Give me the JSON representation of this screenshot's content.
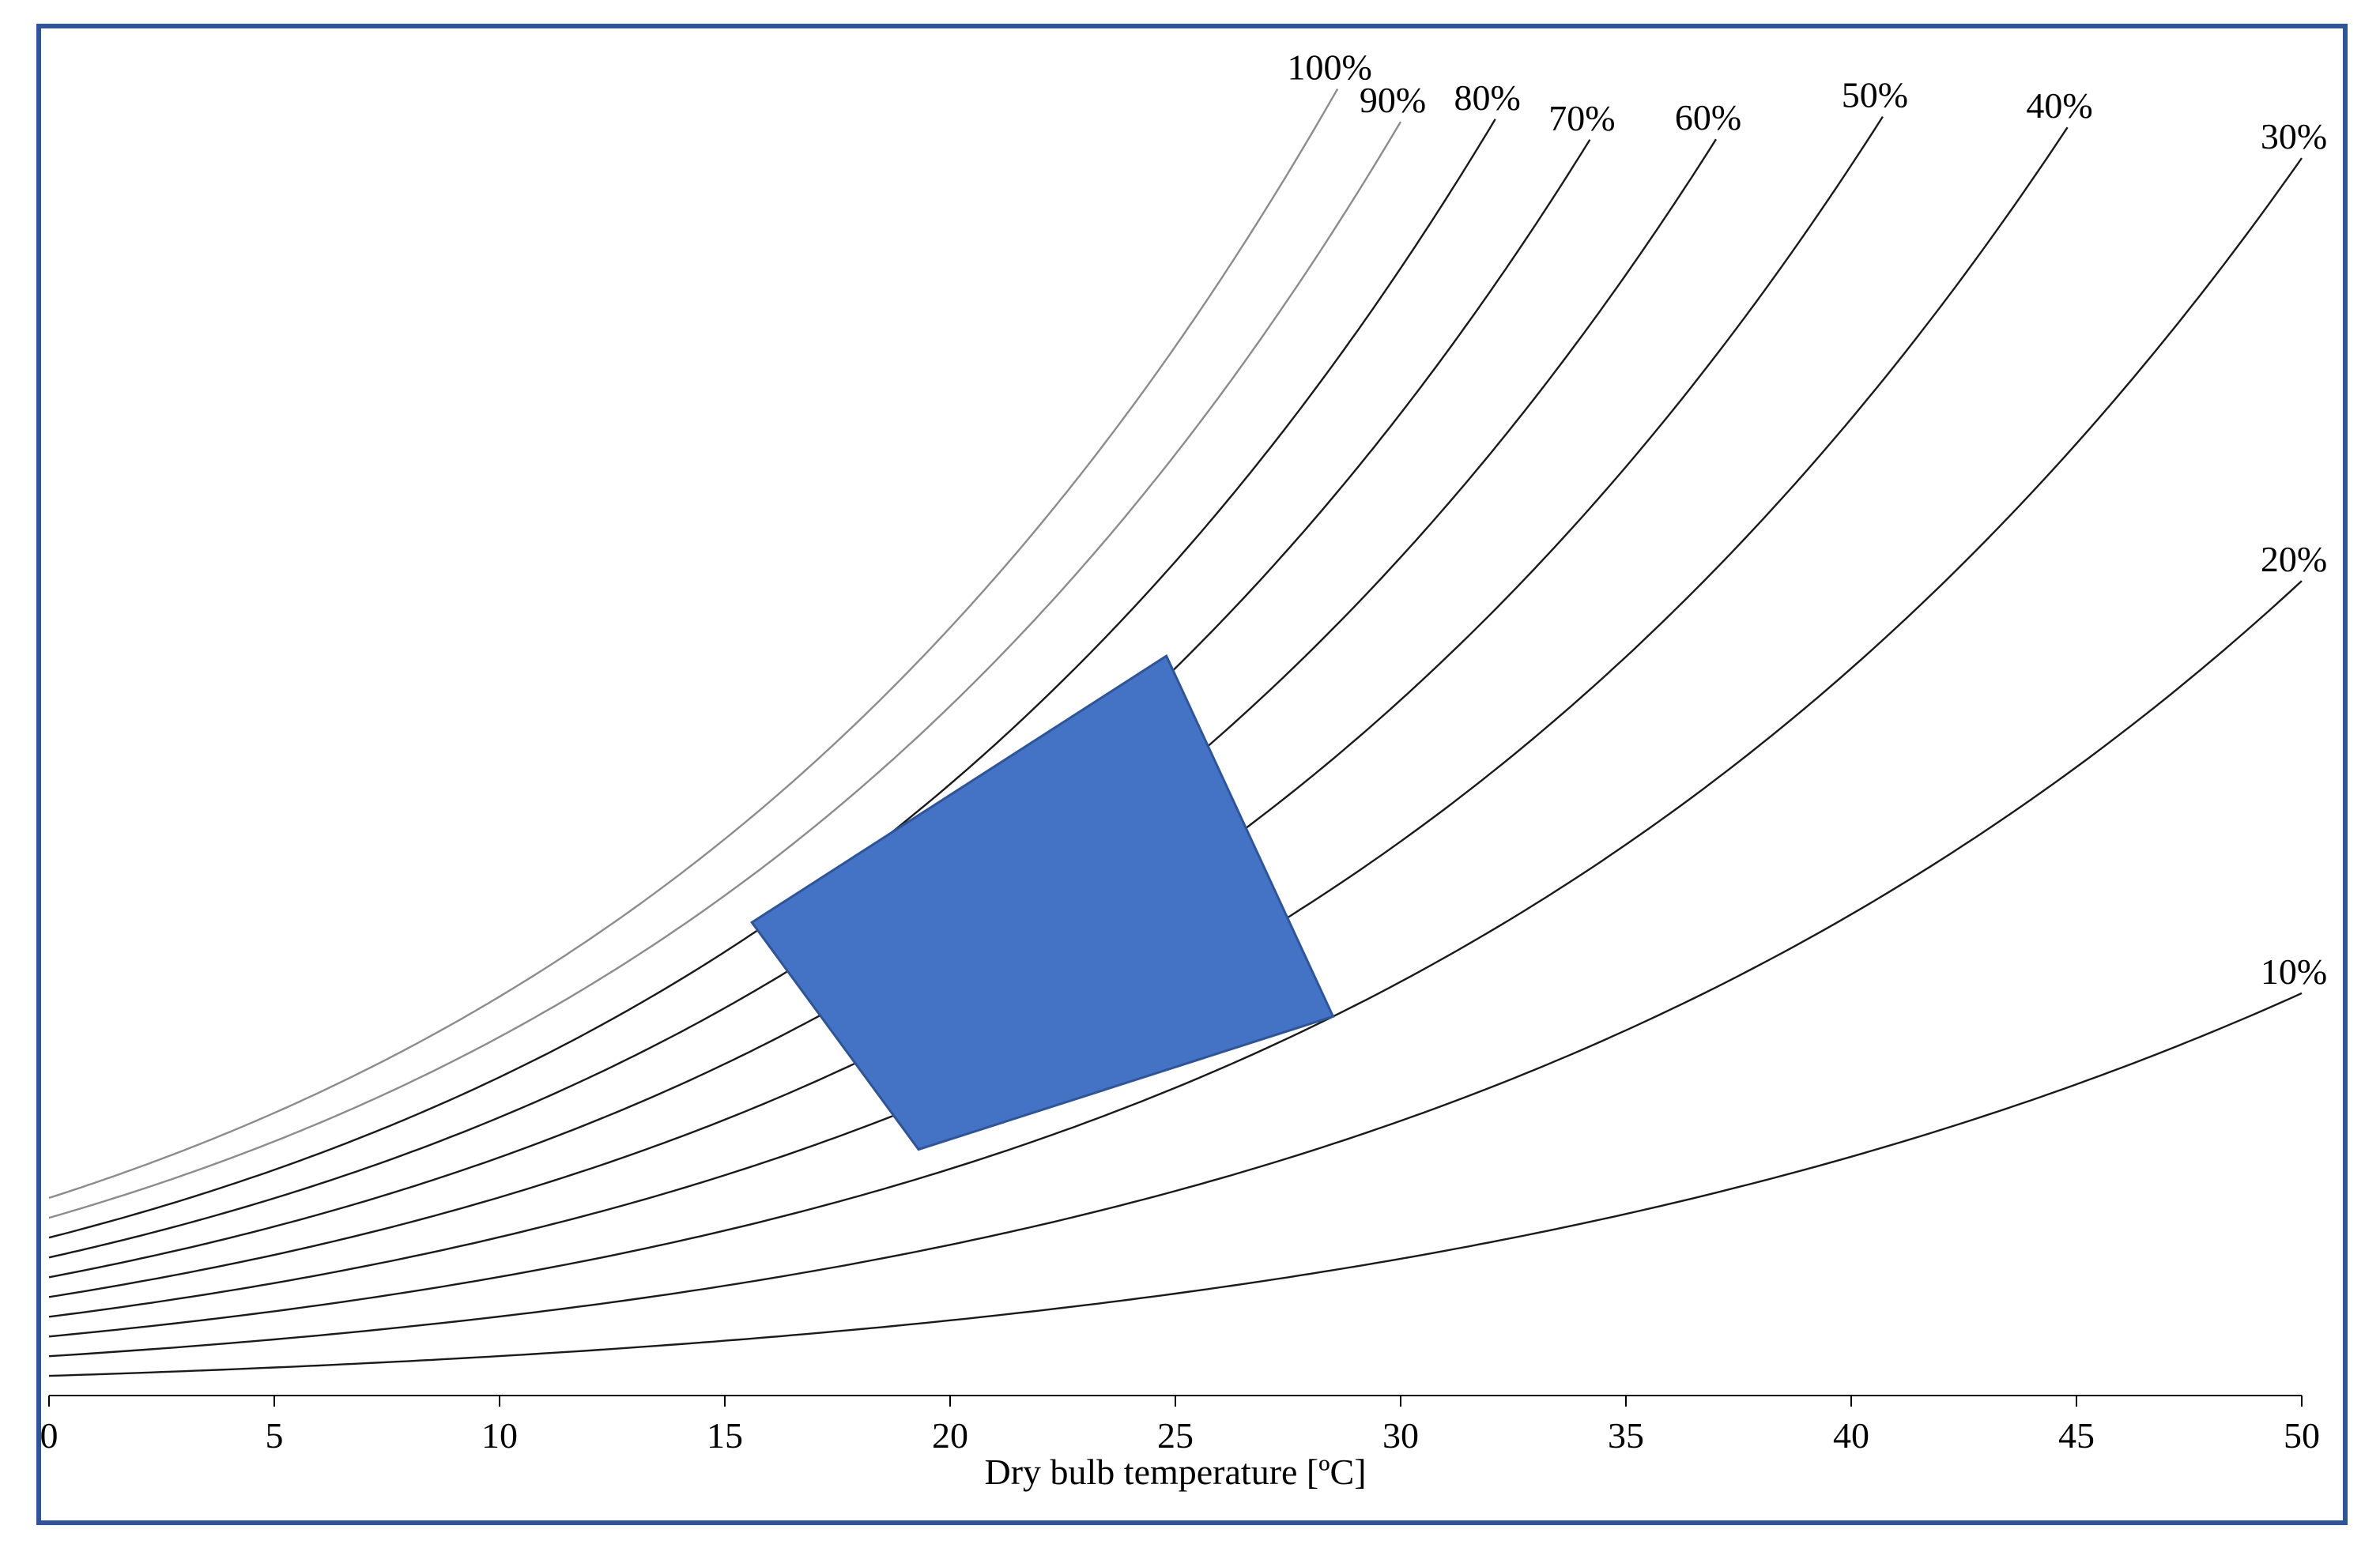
{
  "chart_data": {
    "type": "line",
    "title": "",
    "xlabel": "Dry bulb temperature  [ºC]",
    "ylabel": "",
    "xlim": [
      0,
      50
    ],
    "x_ticks": [
      0,
      5,
      10,
      15,
      20,
      25,
      30,
      35,
      40,
      45,
      50
    ],
    "x_tick_labels": [
      "0",
      "5",
      "10",
      "15",
      "20",
      "25",
      "30",
      "35",
      "40",
      "45",
      "50"
    ],
    "grid": false,
    "legend": "none",
    "ylim": [
      0,
      0.0255
    ],
    "y_axis_visible": false,
    "series": [
      {
        "name": "100%",
        "rh": 1.0,
        "x_end": 28.6,
        "color": "#8c8c8c"
      },
      {
        "name": "90%",
        "rh": 0.9,
        "x_end": 30.0,
        "color": "#8c8c8c"
      },
      {
        "name": "80%",
        "rh": 0.8,
        "x_end": 32.1,
        "color": "#1a1a1a"
      },
      {
        "name": "70%",
        "rh": 0.7,
        "x_end": 34.2,
        "color": "#1a1a1a"
      },
      {
        "name": "60%",
        "rh": 0.6,
        "x_end": 37.0,
        "color": "#1a1a1a"
      },
      {
        "name": "50%",
        "rh": 0.5,
        "x_end": 40.7,
        "color": "#1a1a1a"
      },
      {
        "name": "40%",
        "rh": 0.4,
        "x_end": 44.8,
        "color": "#1a1a1a"
      },
      {
        "name": "30%",
        "rh": 0.3,
        "x_end": 50.0,
        "color": "#1a1a1a"
      },
      {
        "name": "20%",
        "rh": 0.2,
        "x_end": 50.0,
        "color": "#1a1a1a"
      },
      {
        "name": "10%",
        "rh": 0.1,
        "x_end": 50.0,
        "color": "#1a1a1a"
      }
    ],
    "comfort_zone": {
      "color": "#4472c4",
      "stroke": "#2f5597",
      "vertices": [
        {
          "x": 15.6,
          "rh": 0.82
        },
        {
          "x": 24.8,
          "rh": 0.72
        },
        {
          "x": 28.5,
          "rh": 0.3
        },
        {
          "x": 19.3,
          "rh": 0.34
        }
      ]
    }
  }
}
